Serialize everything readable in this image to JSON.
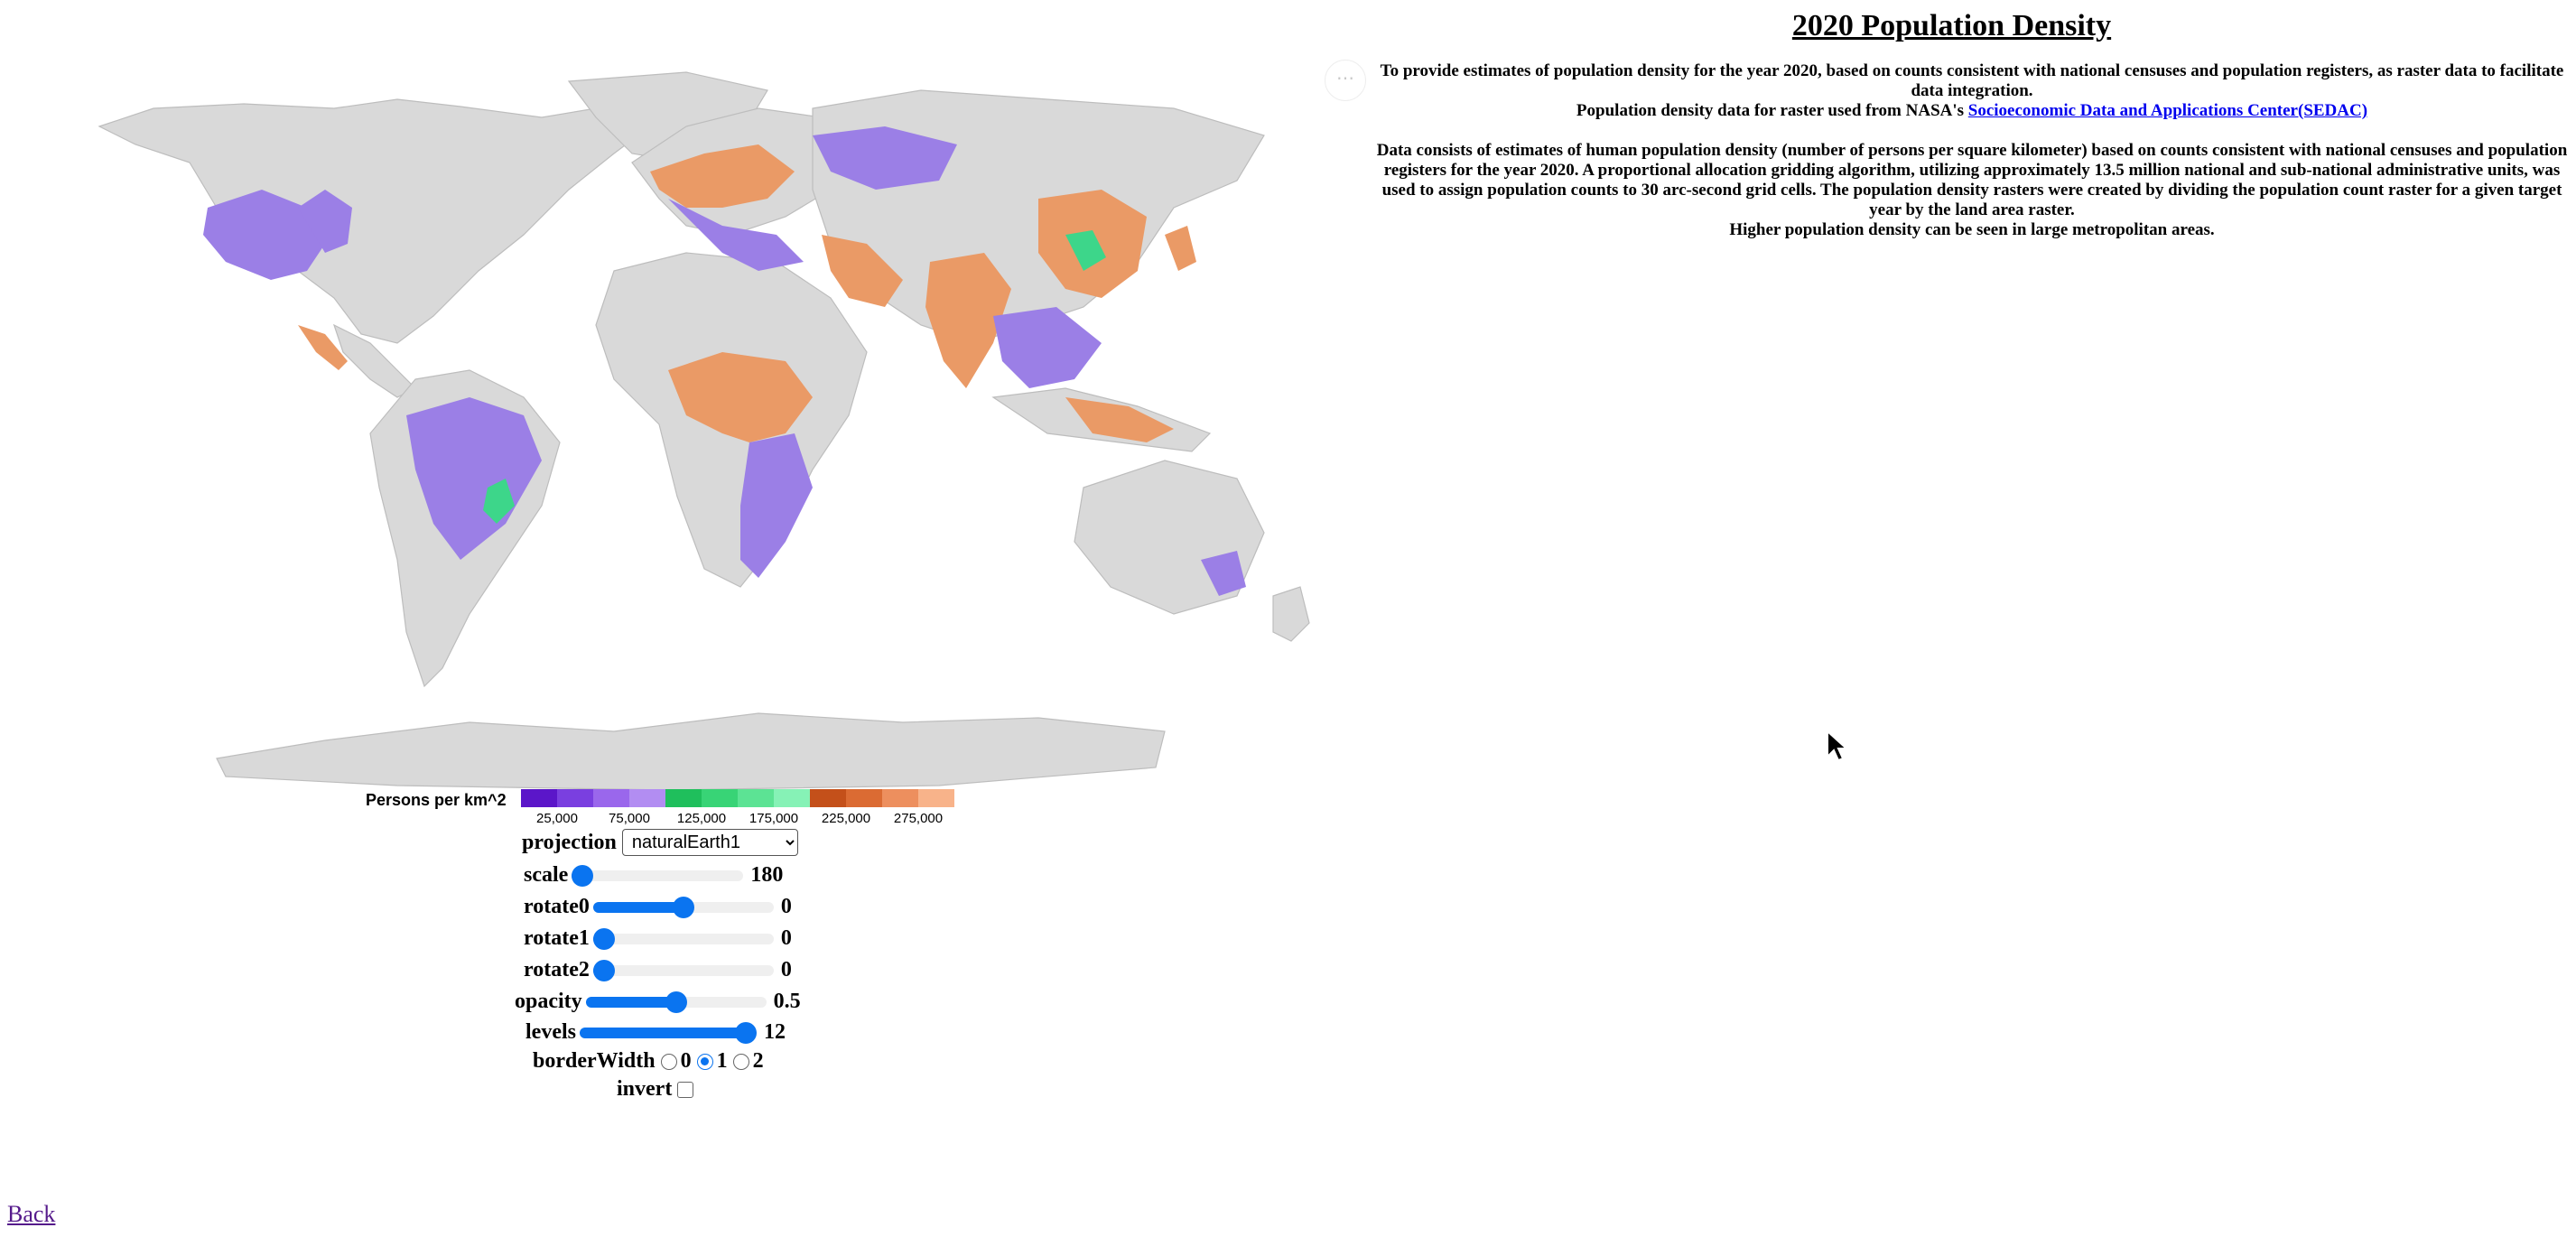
{
  "title": "2020 Population Density",
  "more_icon": "ellipsis-icon",
  "description": {
    "line1": "To provide estimates of population density for the year 2020, based on counts consistent with national censuses and population registers, as raster data to facilitate data integration.",
    "source_prefix": "Population density data for raster used from NASA's ",
    "source_link": "Socioeconomic Data and Applications Center(SEDAC)",
    "paragraph2": "Data consists of estimates of human population density (number of persons per square kilometer) based on counts consistent with national censuses and population registers for the year 2020. A proportional allocation gridding algorithm, utilizing approximately 13.5 million national and sub-national administrative units, was used to assign population counts to 30 arc-second grid cells. The population density rasters were created by dividing the population count raster for a given target year by the land area raster.",
    "paragraph3": "Higher population density can be seen in large metropolitan areas."
  },
  "legend": {
    "title": "Persons per km^2",
    "colors": [
      "#5b16c9",
      "#7a3fe0",
      "#9a67ec",
      "#b28df2",
      "#1fbf5c",
      "#38d476",
      "#5ce394",
      "#86f2b6",
      "#c4501a",
      "#db6b33",
      "#ed8f5e",
      "#f8b38a"
    ],
    "ticks": [
      "25,000",
      "75,000",
      "125,000",
      "175,000",
      "225,000",
      "275,000"
    ]
  },
  "controls": {
    "projection": {
      "label": "projection",
      "value": "naturalEarth1"
    },
    "scale": {
      "label": "scale",
      "value": "180",
      "fraction": 0.0
    },
    "rotate0": {
      "label": "rotate0",
      "value": "0",
      "fraction": 0.5
    },
    "rotate1": {
      "label": "rotate1",
      "value": "0",
      "fraction": 0.0
    },
    "rotate2": {
      "label": "rotate2",
      "value": "0",
      "fraction": 0.0
    },
    "opacity": {
      "label": "opacity",
      "value": "0.5",
      "fraction": 0.5
    },
    "levels": {
      "label": "levels",
      "value": "12",
      "fraction": 1.0
    },
    "borderWidth": {
      "label": "borderWidth",
      "options": [
        "0",
        "1",
        "2"
      ],
      "selected": "1"
    },
    "invert": {
      "label": "invert",
      "checked": false
    }
  },
  "back_link": "Back",
  "colors": {
    "land": "#d9d9d9",
    "slider": "#0a74f0",
    "link": "#0000ee"
  }
}
